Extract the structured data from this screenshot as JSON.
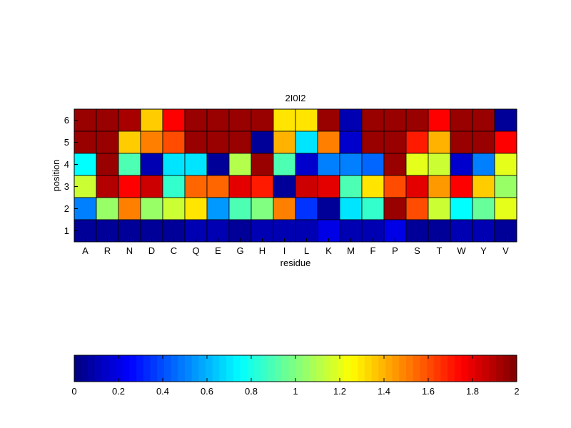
{
  "chart_data": {
    "type": "heatmap",
    "title": "2I0I2",
    "xlabel": "residue",
    "ylabel": "position",
    "x_categories": [
      "A",
      "R",
      "N",
      "D",
      "C",
      "Q",
      "E",
      "G",
      "H",
      "I",
      "L",
      "K",
      "M",
      "F",
      "P",
      "S",
      "T",
      "W",
      "Y",
      "V"
    ],
    "y_categories": [
      "1",
      "2",
      "3",
      "4",
      "5",
      "6"
    ],
    "rows": [
      {
        "position": "6",
        "values": [
          1.95,
          1.95,
          1.92,
          1.35,
          1.75,
          1.95,
          1.95,
          1.95,
          1.95,
          1.3,
          1.3,
          1.95,
          0.1,
          1.95,
          1.95,
          1.95,
          1.75,
          1.95,
          1.95,
          0.05
        ]
      },
      {
        "position": "5",
        "values": [
          1.95,
          1.95,
          1.35,
          1.5,
          1.6,
          1.95,
          1.95,
          1.95,
          0.05,
          1.4,
          0.7,
          1.5,
          0.15,
          1.95,
          1.95,
          1.7,
          1.4,
          1.95,
          1.95,
          1.75
        ]
      },
      {
        "position": "4",
        "values": [
          0.75,
          1.95,
          0.9,
          0.1,
          0.7,
          0.7,
          0.05,
          1.1,
          1.95,
          0.9,
          0.15,
          0.5,
          0.5,
          0.45,
          1.95,
          1.2,
          1.15,
          0.15,
          0.5,
          1.2
        ]
      },
      {
        "position": "3",
        "values": [
          1.15,
          1.9,
          1.75,
          1.85,
          0.85,
          1.55,
          1.55,
          1.8,
          1.7,
          0.05,
          1.85,
          1.8,
          0.9,
          1.3,
          1.6,
          1.8,
          1.45,
          1.75,
          1.35,
          1.05
        ]
      },
      {
        "position": "2",
        "values": [
          0.5,
          1.05,
          1.5,
          1.05,
          1.15,
          1.3,
          0.55,
          0.9,
          1.0,
          1.5,
          0.35,
          0.05,
          0.7,
          0.85,
          1.95,
          1.6,
          1.15,
          0.75,
          0.95,
          1.2
        ]
      },
      {
        "position": "1",
        "values": [
          0.05,
          0.05,
          0.05,
          0.05,
          0.05,
          0.1,
          0.1,
          0.05,
          0.1,
          0.1,
          0.1,
          0.2,
          0.1,
          0.1,
          0.2,
          0.05,
          0.05,
          0.1,
          0.1,
          0.05
        ]
      }
    ],
    "value_range": [
      0,
      2
    ],
    "colormap": "jet",
    "grid": false,
    "colorbar": {
      "placement": "bottom",
      "ticks": [
        "0",
        "0.2",
        "0.4",
        "0.6",
        "0.8",
        "1",
        "1.2",
        "1.4",
        "1.6",
        "1.8",
        "2"
      ]
    }
  }
}
